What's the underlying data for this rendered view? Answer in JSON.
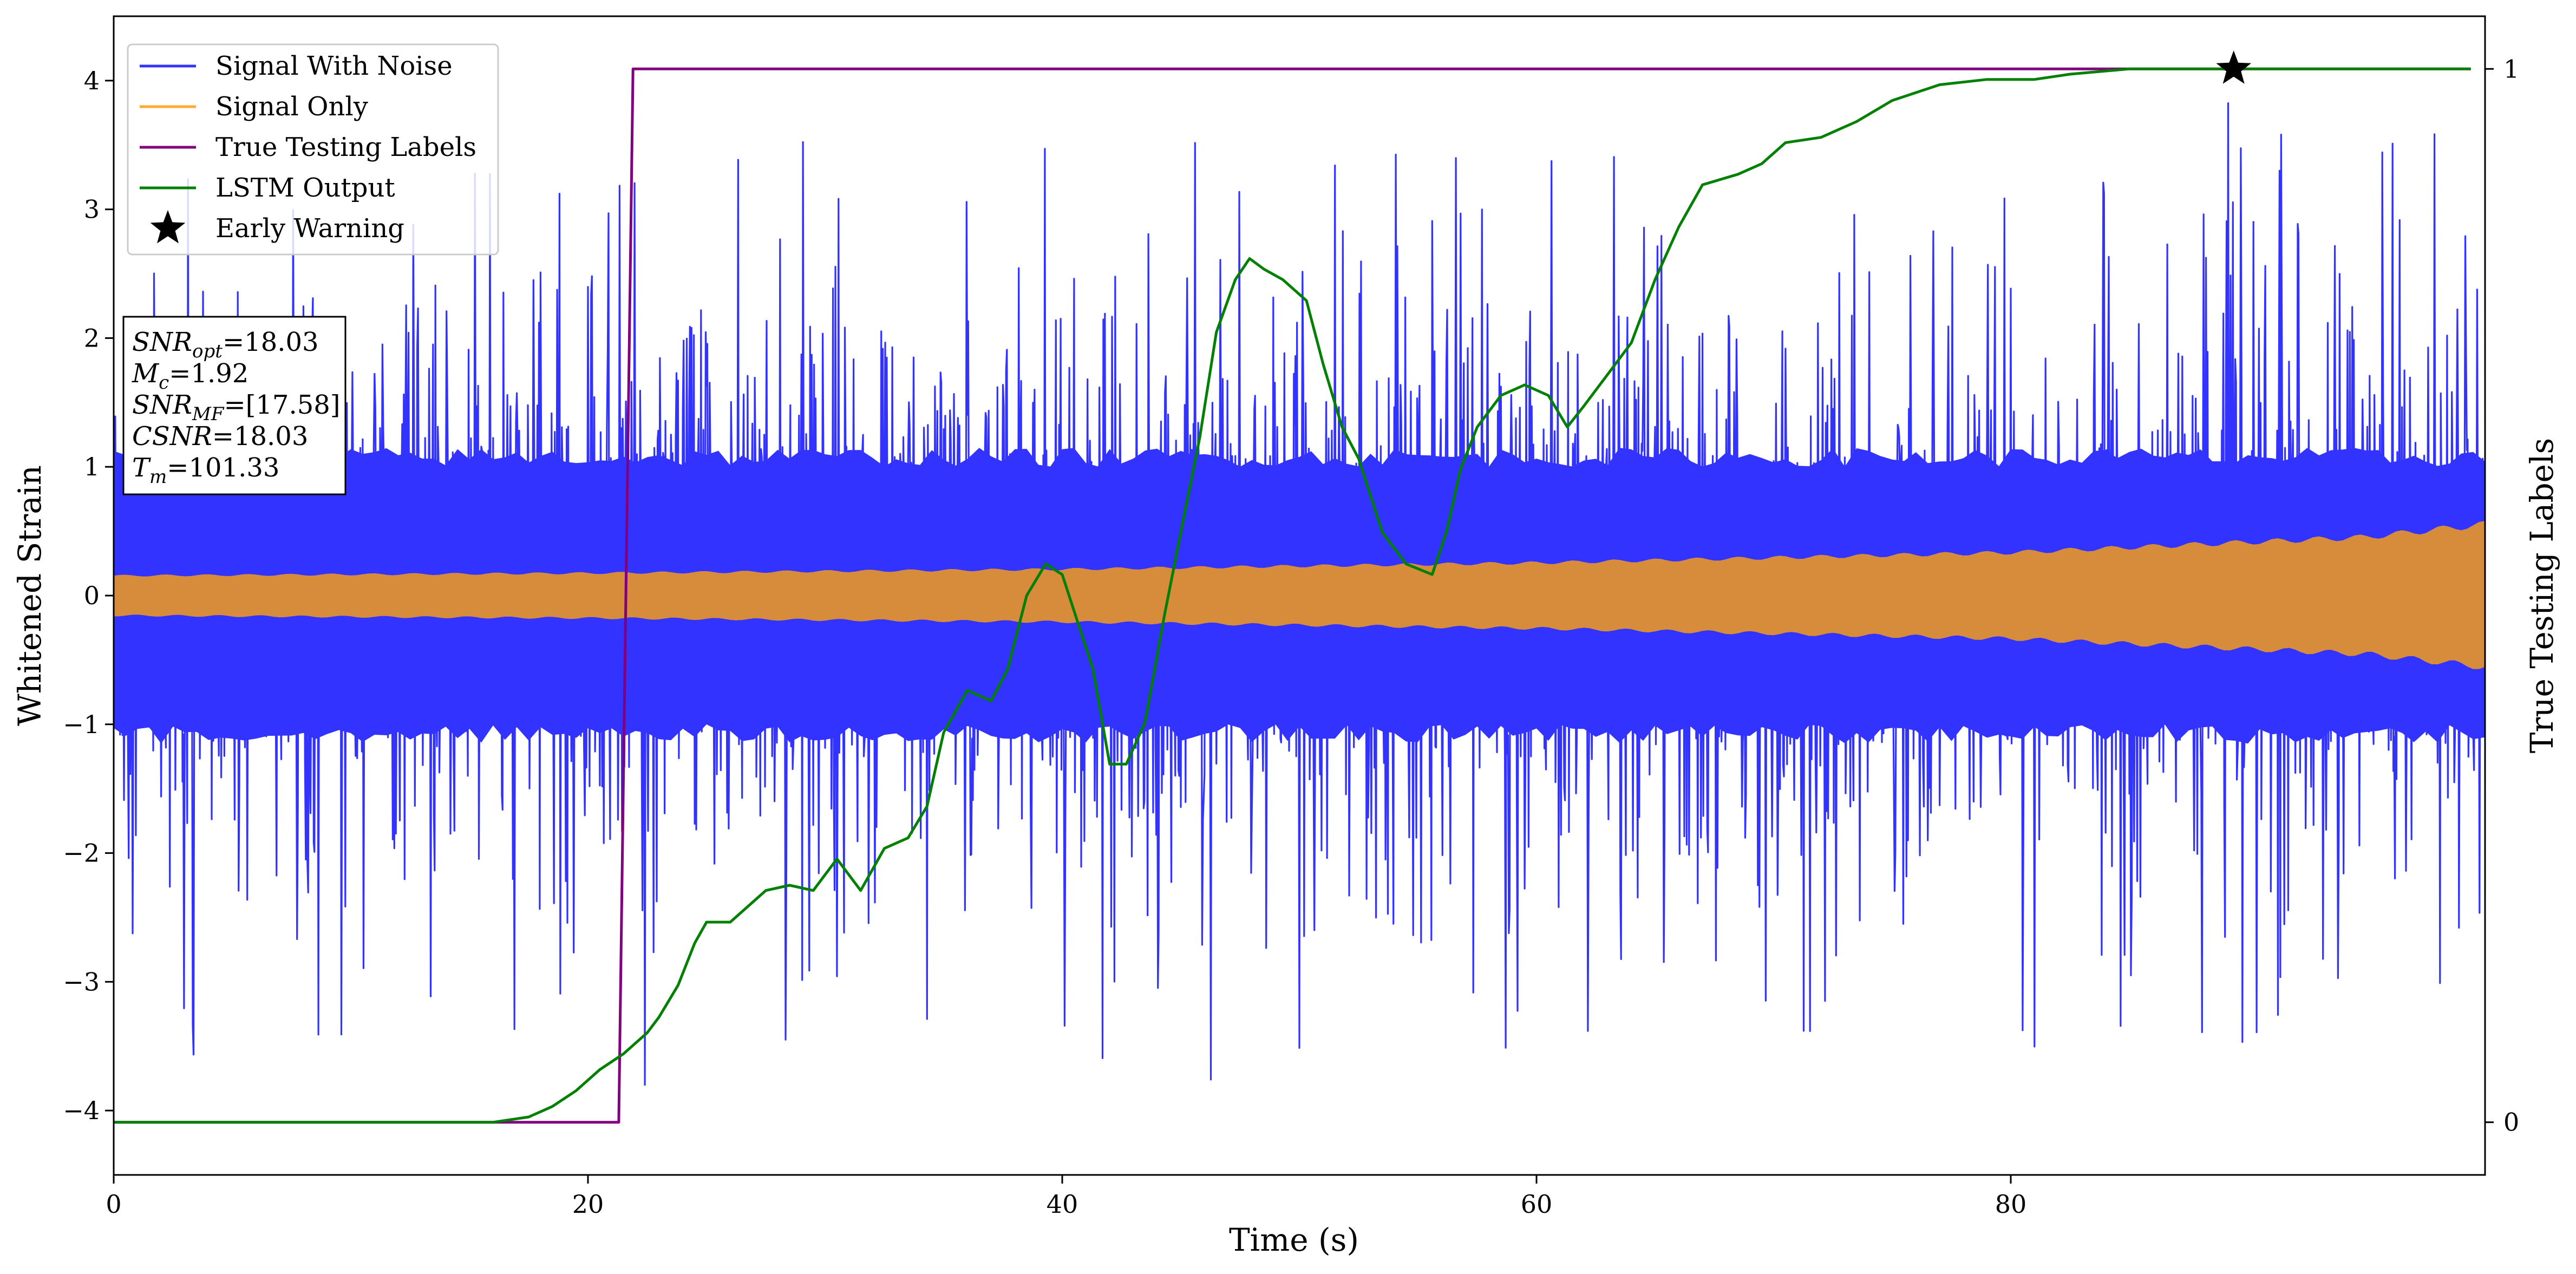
{
  "chart_data": {
    "type": "line",
    "xlabel": "Time (s)",
    "ylabel": "Whitened Strain",
    "y2label": "True Testing Labels",
    "xlim": [
      0,
      100
    ],
    "ylim": [
      -4.5,
      4.5
    ],
    "y2lim": [
      -0.05,
      1.05
    ],
    "xticks": [
      0,
      20,
      40,
      60,
      80
    ],
    "yticks": [
      -4,
      -3,
      -2,
      -1,
      0,
      1,
      2,
      3,
      4
    ],
    "y2ticks": [
      0,
      1
    ],
    "legend_position": "top-left",
    "legend": [
      {
        "label": "Signal With Noise",
        "color": "#3333ff",
        "marker": "line"
      },
      {
        "label": "Signal Only",
        "color": "#ffaa33",
        "marker": "line"
      },
      {
        "label": "True Testing Labels",
        "color": "#800080",
        "marker": "line"
      },
      {
        "label": "LSTM Output",
        "color": "#008000",
        "marker": "line"
      },
      {
        "label": "Early Warning",
        "color": "#000000",
        "marker": "star"
      }
    ],
    "info_box": [
      {
        "main": "SNR",
        "sub": "opt",
        "rest": "=18.03"
      },
      {
        "main": "M",
        "sub": "c",
        "rest": "=1.92"
      },
      {
        "main": "SNR",
        "sub": "MF",
        "rest": "=[17.58]"
      },
      {
        "main": "CSNR",
        "sub": "",
        "rest": "=18.03"
      },
      {
        "main": "T",
        "sub": "m",
        "rest": "=101.33"
      }
    ],
    "series": [
      {
        "name": "Signal With Noise",
        "axis": "left",
        "color": "#3333ff",
        "style": "noise",
        "core_std": 1.0,
        "spike_extent": [
          -3.8,
          4.05
        ],
        "x_range": [
          0,
          100
        ]
      },
      {
        "name": "Signal Only",
        "axis": "left",
        "color": "#d68c3a",
        "style": "envelope",
        "envelope": [
          [
            0,
            0.15
          ],
          [
            20,
            0.17
          ],
          [
            40,
            0.2
          ],
          [
            60,
            0.25
          ],
          [
            80,
            0.33
          ],
          [
            95,
            0.45
          ],
          [
            100,
            0.55
          ]
        ]
      },
      {
        "name": "True Testing Labels",
        "axis": "right",
        "color": "#800080",
        "style": "line",
        "points": [
          [
            0,
            0
          ],
          [
            21.3,
            0
          ],
          [
            21.9,
            1
          ],
          [
            99.4,
            1
          ]
        ]
      },
      {
        "name": "LSTM Output",
        "axis": "right",
        "color": "#008000",
        "style": "line",
        "points": [
          [
            0,
            0
          ],
          [
            16,
            0
          ],
          [
            17.5,
            0.005
          ],
          [
            18.5,
            0.015
          ],
          [
            19.5,
            0.03
          ],
          [
            20.5,
            0.05
          ],
          [
            21.5,
            0.065
          ],
          [
            22.5,
            0.085
          ],
          [
            23,
            0.1
          ],
          [
            23.8,
            0.13
          ],
          [
            24.5,
            0.17
          ],
          [
            25,
            0.19
          ],
          [
            26,
            0.19
          ],
          [
            26.5,
            0.2
          ],
          [
            27.5,
            0.22
          ],
          [
            28.5,
            0.225
          ],
          [
            29.5,
            0.22
          ],
          [
            30.5,
            0.25
          ],
          [
            31.5,
            0.22
          ],
          [
            32.5,
            0.26
          ],
          [
            33.5,
            0.27
          ],
          [
            34.3,
            0.3
          ],
          [
            35,
            0.37
          ],
          [
            36,
            0.41
          ],
          [
            37,
            0.4
          ],
          [
            37.7,
            0.43
          ],
          [
            38.5,
            0.5
          ],
          [
            39.3,
            0.53
          ],
          [
            40,
            0.52
          ],
          [
            41.3,
            0.43
          ],
          [
            42,
            0.34
          ],
          [
            42.7,
            0.34
          ],
          [
            43.5,
            0.38
          ],
          [
            44.3,
            0.48
          ],
          [
            45,
            0.56
          ],
          [
            45.8,
            0.65
          ],
          [
            46.5,
            0.75
          ],
          [
            47.3,
            0.8
          ],
          [
            47.9,
            0.82
          ],
          [
            48.5,
            0.81
          ],
          [
            49.3,
            0.8
          ],
          [
            50.3,
            0.78
          ],
          [
            51,
            0.72
          ],
          [
            51.8,
            0.66
          ],
          [
            52.5,
            0.63
          ],
          [
            53.5,
            0.56
          ],
          [
            54.5,
            0.53
          ],
          [
            55.6,
            0.52
          ],
          [
            56.2,
            0.56
          ],
          [
            56.8,
            0.62
          ],
          [
            57.5,
            0.66
          ],
          [
            58.5,
            0.69
          ],
          [
            59.5,
            0.7
          ],
          [
            60.5,
            0.69
          ],
          [
            61.3,
            0.66
          ],
          [
            62,
            0.68
          ],
          [
            63,
            0.71
          ],
          [
            64,
            0.74
          ],
          [
            65,
            0.8
          ],
          [
            66,
            0.85
          ],
          [
            67,
            0.89
          ],
          [
            68.5,
            0.9
          ],
          [
            69.5,
            0.91
          ],
          [
            70.5,
            0.93
          ],
          [
            72,
            0.935
          ],
          [
            73.5,
            0.95
          ],
          [
            75,
            0.97
          ],
          [
            77,
            0.985
          ],
          [
            79,
            0.99
          ],
          [
            81,
            0.99
          ],
          [
            82.5,
            0.995
          ],
          [
            85,
            1.0
          ],
          [
            87,
            1.0
          ],
          [
            89.5,
            1.0
          ],
          [
            92,
            1.0
          ],
          [
            95,
            1.0
          ],
          [
            99.4,
            1.0
          ]
        ]
      },
      {
        "name": "Early Warning",
        "axis": "right",
        "color": "#000000",
        "style": "marker",
        "points": [
          [
            89.4,
            1.0
          ]
        ]
      }
    ]
  }
}
